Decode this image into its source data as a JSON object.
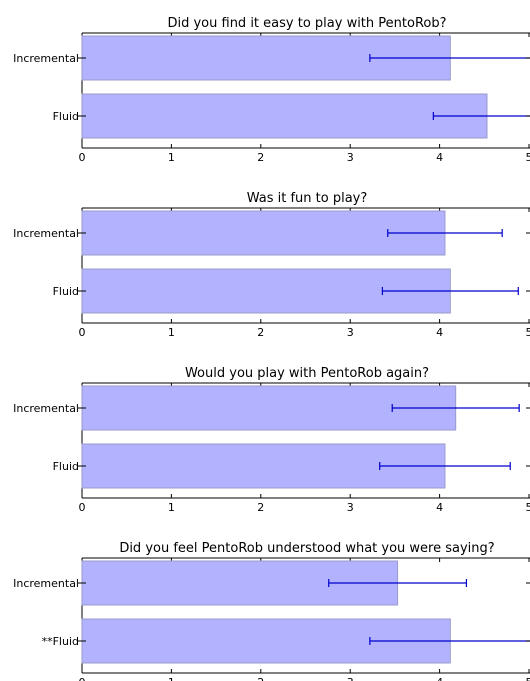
{
  "chart_data": [
    {
      "type": "bar",
      "orientation": "horizontal",
      "title": "Did you find it easy to play with PentoRob?",
      "categories": [
        "Incremental",
        "Fluid"
      ],
      "values": [
        4.12,
        4.53
      ],
      "error": [
        0.9,
        0.6
      ],
      "xlim": [
        0,
        5
      ],
      "xticks": [
        "0",
        "1",
        "2",
        "3",
        "4",
        "5"
      ],
      "xlabel": "",
      "ylabel": ""
    },
    {
      "type": "bar",
      "orientation": "horizontal",
      "title": "Was it fun to play?",
      "categories": [
        "Incremental",
        "Fluid"
      ],
      "values": [
        4.06,
        4.12
      ],
      "error": [
        0.64,
        0.76
      ],
      "xlim": [
        0,
        5
      ],
      "xticks": [
        "0",
        "1",
        "2",
        "3",
        "4",
        "5"
      ],
      "xlabel": "",
      "ylabel": ""
    },
    {
      "type": "bar",
      "orientation": "horizontal",
      "title": "Would you play with PentoRob again?",
      "categories": [
        "Incremental",
        "Fluid"
      ],
      "values": [
        4.18,
        4.06
      ],
      "error": [
        0.71,
        0.73
      ],
      "xlim": [
        0,
        5
      ],
      "xticks": [
        "0",
        "1",
        "2",
        "3",
        "4",
        "5"
      ],
      "xlabel": "",
      "ylabel": ""
    },
    {
      "type": "bar",
      "orientation": "horizontal",
      "title": "Did you feel PentoRob understood what you were saying?",
      "categories": [
        "Incremental",
        "**Fluid"
      ],
      "values": [
        3.53,
        4.12
      ],
      "error": [
        0.77,
        0.9
      ],
      "xlim": [
        0,
        5
      ],
      "xticks": [
        "0",
        "1",
        "2",
        "3",
        "4",
        "5"
      ],
      "xlabel": "",
      "ylabel": ""
    }
  ],
  "colors": {
    "bar_fill": "#b2b2ff",
    "bar_edge": "#9a9acb",
    "error_bar": "#0000cc",
    "axis": "#000000"
  }
}
